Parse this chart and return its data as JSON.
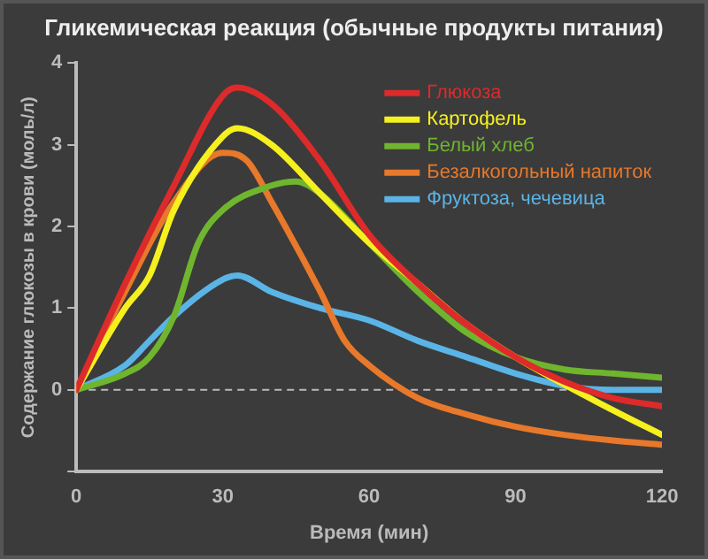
{
  "chart_data": {
    "type": "line",
    "title": "Гликемическая реакция (обычные продукты питания)",
    "xlabel": "Время (мин)",
    "ylabel": "Содержание глюкозы в крови (моль/л)",
    "xlim": [
      0,
      120
    ],
    "xticks": [
      0,
      30,
      60,
      90,
      120
    ],
    "ylim": [
      -1,
      4
    ],
    "yticks": [
      {
        "value": -1,
        "label": null
      },
      0,
      1,
      2,
      3,
      4
    ],
    "grid": false,
    "legend": "top right",
    "marker": "none",
    "line_style": "solid",
    "ref_lines": [
      {
        "axis": "y",
        "value": 0,
        "label": null,
        "color": "#bbbbbb",
        "line_style": "dashed"
      }
    ],
    "series": [
      {
        "name": "Глюкоза",
        "color": "#dd2a2a",
        "x": [
          0,
          10,
          20,
          30,
          33,
          40,
          50,
          60,
          70,
          80,
          90,
          100,
          110,
          120
        ],
        "values": [
          0,
          1.3,
          2.5,
          3.6,
          3.7,
          3.5,
          2.8,
          1.9,
          1.3,
          0.8,
          0.4,
          0.1,
          -0.1,
          -0.2
        ]
      },
      {
        "name": "Картофель",
        "color": "#f5f01e",
        "x": [
          0,
          10,
          15,
          20,
          30,
          33,
          40,
          50,
          60,
          70,
          80,
          90,
          110,
          120
        ],
        "values": [
          0,
          1,
          1.4,
          2.2,
          3.1,
          3.2,
          3,
          2.4,
          1.8,
          1.3,
          0.8,
          0.4,
          -0.25,
          -0.55
        ]
      },
      {
        "name": "Белый хлеб",
        "color": "#6fb52e",
        "x": [
          0,
          10,
          15,
          20,
          25,
          30,
          40,
          45,
          50,
          60,
          70,
          80,
          90,
          100,
          110,
          120
        ],
        "values": [
          0,
          0.2,
          0.4,
          0.9,
          1.8,
          2.2,
          2.5,
          2.55,
          2.4,
          1.8,
          1.2,
          0.7,
          0.4,
          0.25,
          0.2,
          0.15
        ]
      },
      {
        "name": "Безалкогольный напиток",
        "color": "#e8782a",
        "x": [
          0,
          10,
          20,
          30,
          35,
          40,
          50,
          55,
          60,
          70,
          80,
          90,
          100,
          110,
          120
        ],
        "values": [
          0,
          1.2,
          2.3,
          2.9,
          2.8,
          2.3,
          1.2,
          0.6,
          0.3,
          -0.1,
          -0.3,
          -0.45,
          -0.55,
          -0.62,
          -0.67
        ]
      },
      {
        "name": "Фруктоза, чечевица",
        "color": "#5ab4e6",
        "x": [
          0,
          10,
          15,
          20,
          30,
          33,
          40,
          50,
          60,
          70,
          80,
          90,
          100,
          110,
          120
        ],
        "values": [
          0,
          0.3,
          0.6,
          0.9,
          1.35,
          1.4,
          1.2,
          1,
          0.85,
          0.6,
          0.4,
          0.2,
          0.05,
          0,
          0
        ]
      }
    ]
  }
}
